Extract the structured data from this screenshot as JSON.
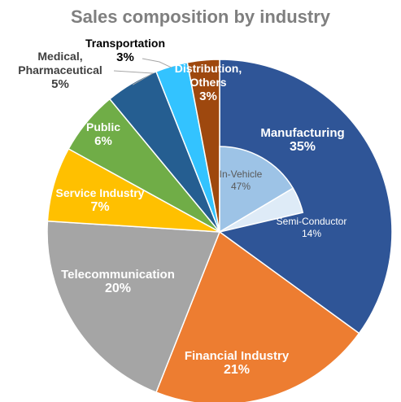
{
  "chart_data": {
    "type": "pie",
    "title": "Sales composition by industry",
    "slices": [
      {
        "name": "Manufacturing",
        "value": 35,
        "label": "35%",
        "color": "#2f5597"
      },
      {
        "name": "Financial Industry",
        "value": 21,
        "label": "21%",
        "color": "#ed7d31"
      },
      {
        "name": "Telecommunication",
        "value": 20,
        "label": "20%",
        "color": "#a5a5a5"
      },
      {
        "name": "Service Industry",
        "value": 7,
        "label": "7%",
        "color": "#ffc000"
      },
      {
        "name": "Public",
        "value": 6,
        "label": "6%",
        "color": "#70ad47"
      },
      {
        "name": "Medical, Pharmaceutical",
        "value": 5,
        "label": "5%",
        "color": "#255e91"
      },
      {
        "name": "Transportation",
        "value": 3,
        "label": "3%",
        "color": "#33c3ff"
      },
      {
        "name": "Distribution, Others",
        "value": 3,
        "label": "3%",
        "color": "#9e480e"
      }
    ],
    "sub_breakdown": {
      "parent": "Manufacturing",
      "slices": [
        {
          "name": "In-Vehicle",
          "value": 47,
          "label": "47%",
          "color": "#9dc3e6"
        },
        {
          "name": "Semi-Conductor",
          "value": 14,
          "label": "14%",
          "color": "#deebf7"
        }
      ]
    },
    "legend": "none"
  }
}
